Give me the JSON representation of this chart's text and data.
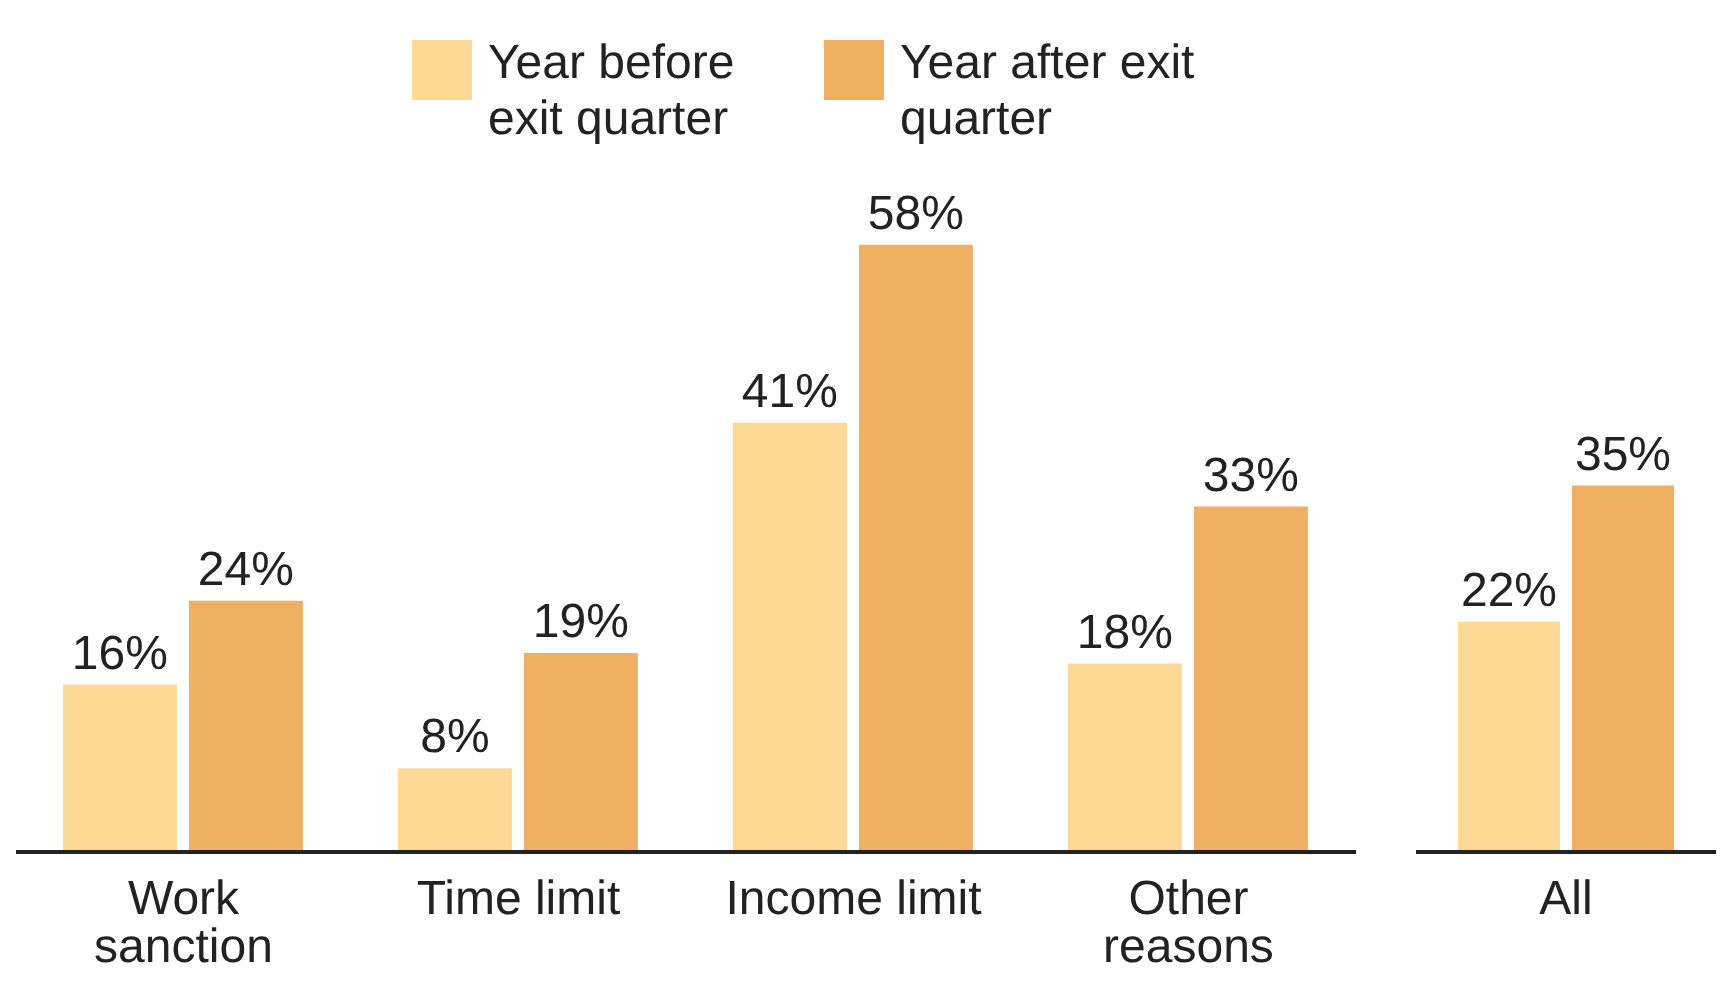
{
  "chart_data": [
    {
      "type": "bar",
      "categories": [
        "Work sanction",
        "Time limit",
        "Income limit",
        "Other reasons"
      ],
      "legend": "top",
      "series": [
        {
          "name": "Year before exit quarter",
          "color": "#fdd995",
          "values": [
            16,
            8,
            41,
            18
          ],
          "value_labels": [
            "16%",
            "8%",
            "41%",
            "18%"
          ]
        },
        {
          "name": "Year after exit quarter",
          "color": "#f0b062",
          "values": [
            24,
            19,
            58,
            33
          ],
          "value_labels": [
            "24%",
            "19%",
            "58%",
            "33%"
          ]
        }
      ]
    },
    {
      "type": "bar",
      "categories": [
        "All"
      ],
      "series": [
        {
          "color": "#fdd995",
          "values": [
            22
          ],
          "value_labels": [
            "22%"
          ]
        },
        {
          "color": "#f0b062",
          "values": [
            35
          ],
          "value_labels": [
            "35%"
          ]
        }
      ]
    }
  ]
}
